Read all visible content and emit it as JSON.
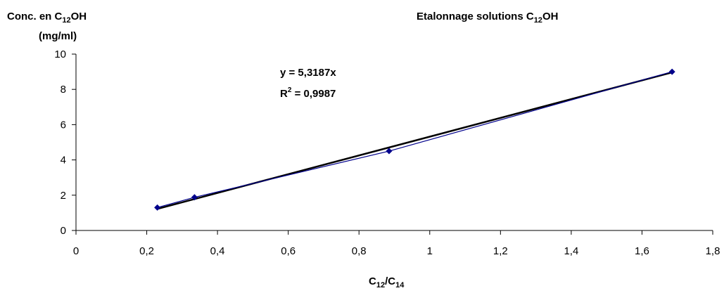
{
  "chart_data": {
    "type": "scatter",
    "title": {
      "pre": "Etalonnage solutions C",
      "sub": "12",
      "post": "OH"
    },
    "ylabel": {
      "line1": {
        "pre": "Conc. en C",
        "sub": "12",
        "post": "OH"
      },
      "line2": "(mg/ml)"
    },
    "xlabel": {
      "c1": "C",
      "s1": "12",
      "slash": "/C",
      "s2": "14"
    },
    "xlim": [
      0,
      1.8
    ],
    "ylim": [
      0,
      10
    ],
    "x_ticks": [
      "0",
      "0,2",
      "0,4",
      "0,6",
      "0,8",
      "1",
      "1,2",
      "1,4",
      "1,6",
      "1,8"
    ],
    "y_ticks": [
      "0",
      "2",
      "4",
      "6",
      "8",
      "10"
    ],
    "grid": false,
    "series": [
      {
        "points": [
          {
            "x": 0.23,
            "y": 1.3
          },
          {
            "x": 0.335,
            "y": 1.88
          },
          {
            "x": 0.885,
            "y": 4.5
          },
          {
            "x": 1.685,
            "y": 9.0
          }
        ],
        "color": "#00008b",
        "marker": "diamond"
      }
    ],
    "trendline": {
      "slope": 5.3187,
      "x_range": [
        0.23,
        1.685
      ],
      "color": "#000000",
      "equation": "y = 5,3187x",
      "r2": {
        "pre": "R",
        "sup": "2",
        "post": " = 0,9987"
      }
    }
  }
}
